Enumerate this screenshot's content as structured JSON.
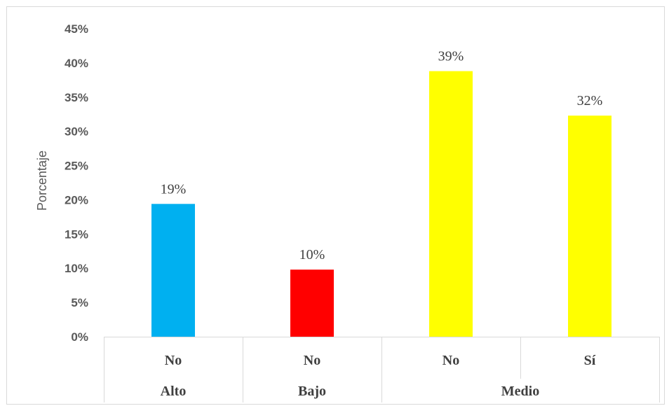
{
  "chart_data": {
    "type": "bar",
    "ylabel": "Porcentaje",
    "ylim": [
      0,
      45
    ],
    "yticks": [
      "0%",
      "5%",
      "10%",
      "15%",
      "20%",
      "25%",
      "30%",
      "35%",
      "40%",
      "45%"
    ],
    "categories": [
      {
        "label": "No",
        "group": "Alto",
        "value": 19.4,
        "data_label": "19%",
        "color": "#00B0F0"
      },
      {
        "label": "No",
        "group": "Bajo",
        "value": 9.8,
        "data_label": "10%",
        "color": "#FF0000"
      },
      {
        "label": "No",
        "group": "Medio",
        "value": 38.8,
        "data_label": "39%",
        "color": "#FFFF00"
      },
      {
        "label": "Sí",
        "group": "Medio",
        "value": 32.3,
        "data_label": "32%",
        "color": "#FFFF00"
      }
    ],
    "groups": [
      "Alto",
      "Bajo",
      "Medio"
    ],
    "grid": false,
    "legend": "none",
    "colors": {
      "axis": "#D9D9D9",
      "text": "#595959",
      "border": "#D9D9D9"
    }
  }
}
